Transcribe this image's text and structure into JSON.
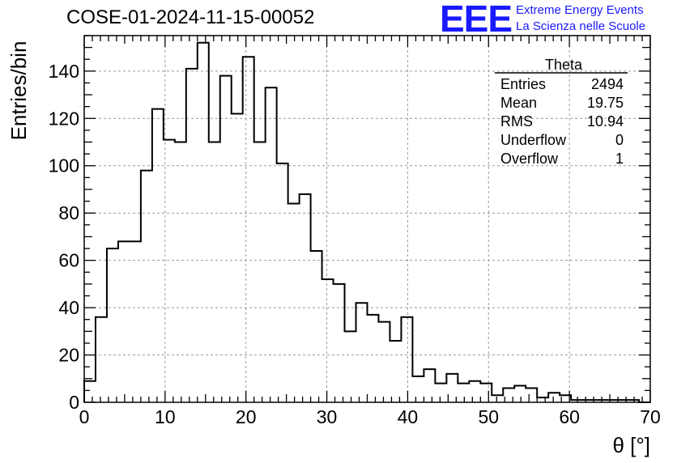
{
  "header": {
    "title": "COSE-01-2024-11-15-00052",
    "logo_text": "EEE",
    "logo_line1": "Extreme Energy Events",
    "logo_line2": "La Scienza nelle Scuole",
    "logo_color": "#1a1aff"
  },
  "stats_box": {
    "name": "Theta",
    "rows": [
      {
        "label": "Entries",
        "value": "2494"
      },
      {
        "label": "Mean",
        "value": "19.75"
      },
      {
        "label": "RMS",
        "value": "10.94"
      },
      {
        "label": "Underflow",
        "value": "0"
      },
      {
        "label": "Overflow",
        "value": "1"
      }
    ]
  },
  "chart_data": {
    "type": "histogram",
    "xlabel": "θ [°]",
    "ylabel": "Entries/bin",
    "xlim": [
      0,
      70
    ],
    "ylim": [
      0,
      155
    ],
    "grid": true,
    "x_ticks": [
      0,
      10,
      20,
      30,
      40,
      50,
      60,
      70
    ],
    "y_ticks": [
      0,
      20,
      40,
      60,
      80,
      100,
      120,
      140
    ],
    "bin_width": 1.4,
    "bin_start": 0,
    "values": [
      9,
      36,
      65,
      68,
      68,
      98,
      124,
      111,
      110,
      141,
      152,
      110,
      138,
      122,
      146,
      110,
      133,
      101,
      84,
      88,
      64,
      52,
      50,
      30,
      42,
      37,
      34,
      26,
      36,
      11,
      14,
      8,
      12,
      8,
      9,
      8,
      3,
      6,
      7,
      6,
      2,
      4,
      3,
      1,
      1,
      1,
      1,
      1,
      1,
      0
    ],
    "line_color": "#000000"
  }
}
